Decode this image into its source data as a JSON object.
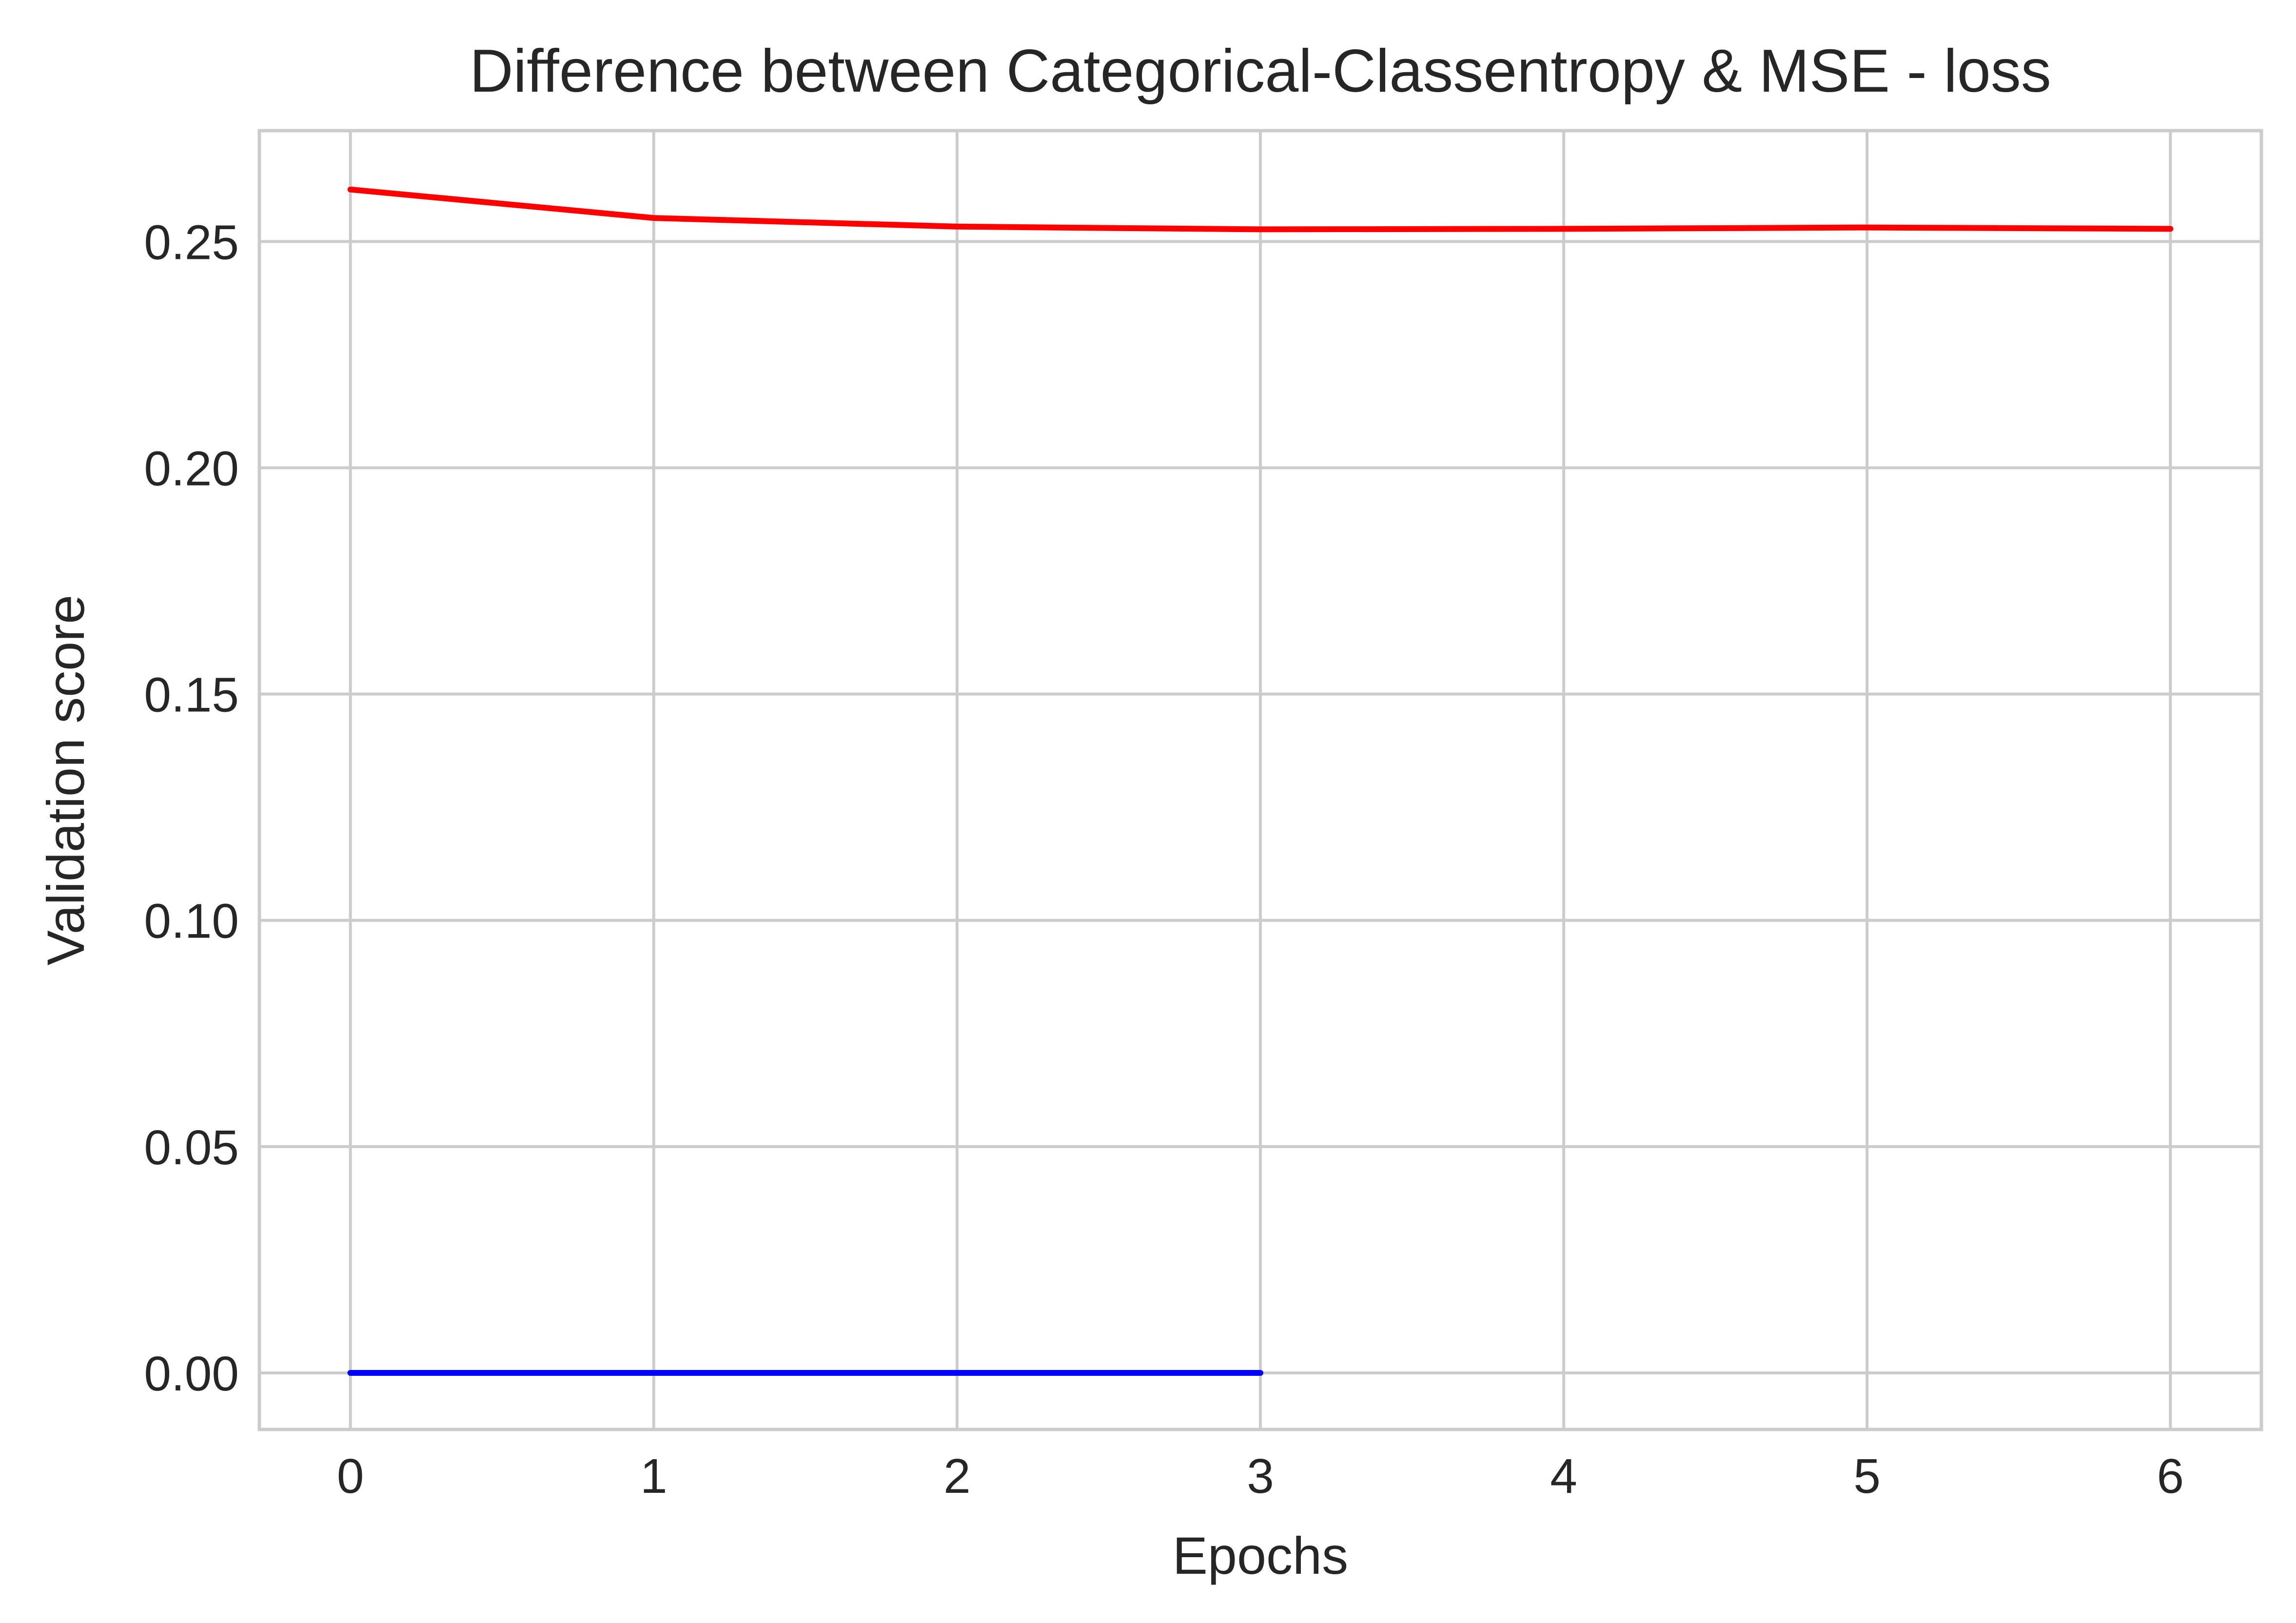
{
  "chart_data": {
    "type": "line",
    "title": "Difference between Categorical-Classentropy & MSE - loss",
    "xlabel": "Epochs",
    "ylabel": "Validation score",
    "xlim": [
      -0.3,
      6.3
    ],
    "ylim": [
      -0.0125,
      0.2745
    ],
    "xticks": [
      0,
      1,
      2,
      3,
      4,
      5,
      6
    ],
    "xtick_labels": [
      "0",
      "1",
      "2",
      "3",
      "4",
      "5",
      "6"
    ],
    "yticks": [
      0.0,
      0.05,
      0.1,
      0.15,
      0.2,
      0.25
    ],
    "ytick_labels": [
      "0.00",
      "0.05",
      "0.10",
      "0.15",
      "0.20",
      "0.25"
    ],
    "grid": true,
    "legend": "none",
    "series": [
      {
        "color": "#ff0000",
        "x": [
          0,
          1,
          2,
          3,
          4,
          5,
          6
        ],
        "values": [
          0.2615,
          0.2552,
          0.2533,
          0.2527,
          0.2528,
          0.2531,
          0.2528
        ]
      },
      {
        "color": "#0000ff",
        "x": [
          0,
          1,
          2,
          3
        ],
        "values": [
          0.0,
          0.0,
          0.0,
          0.0
        ]
      }
    ]
  }
}
